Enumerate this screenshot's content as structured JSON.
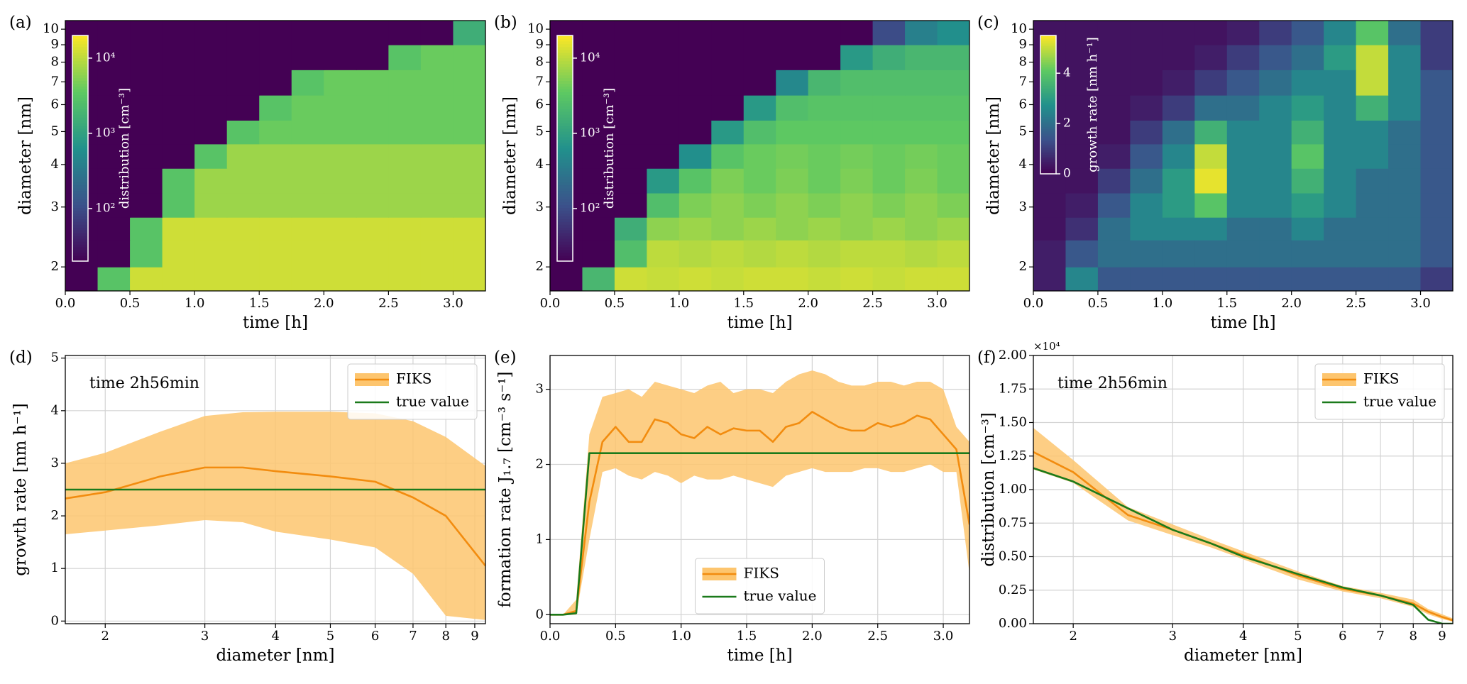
{
  "chart_data": [
    {
      "type": "heatmap",
      "panel_label": "(a)",
      "xlabel": "time [h]",
      "ylabel": "diameter [nm]",
      "x": [
        0,
        0.25,
        0.5,
        0.75,
        1,
        1.25,
        1.5,
        1.75,
        2,
        2.25,
        2.5,
        2.75,
        3,
        3.25
      ],
      "y": [
        1.7,
        2,
        2.4,
        2.8,
        3.3,
        3.9,
        4.6,
        5.4,
        6.4,
        7.6,
        9,
        10.6
      ],
      "z": [
        [
          20,
          3000,
          12000,
          12000,
          12000,
          12000,
          12000,
          12000,
          12000,
          12000,
          12000,
          12000,
          12000
        ],
        [
          20,
          20,
          3000,
          12000,
          12000,
          12000,
          12000,
          12000,
          12000,
          12000,
          12000,
          12000,
          12000
        ],
        [
          20,
          20,
          3000,
          12000,
          12000,
          12000,
          12000,
          12000,
          12000,
          12000,
          12000,
          12000,
          12000
        ],
        [
          20,
          20,
          20,
          3000,
          7000,
          7000,
          7000,
          7000,
          7000,
          7000,
          7000,
          7000,
          7000
        ],
        [
          20,
          20,
          20,
          3000,
          7000,
          7000,
          7000,
          7000,
          7000,
          7000,
          7000,
          7000,
          7000
        ],
        [
          20,
          20,
          20,
          20,
          3000,
          7000,
          7000,
          7000,
          7000,
          7000,
          7000,
          7000,
          7000
        ],
        [
          20,
          20,
          20,
          20,
          20,
          3000,
          4000,
          4000,
          4000,
          4000,
          4000,
          4000,
          4000
        ],
        [
          20,
          20,
          20,
          20,
          20,
          20,
          3000,
          4000,
          4000,
          4000,
          4000,
          4000,
          4000
        ],
        [
          20,
          20,
          20,
          20,
          20,
          20,
          20,
          3000,
          4000,
          4000,
          4000,
          4000,
          4000
        ],
        [
          20,
          20,
          20,
          20,
          20,
          20,
          20,
          20,
          20,
          20,
          3000,
          4000,
          4000
        ],
        [
          20,
          20,
          20,
          20,
          20,
          20,
          20,
          20,
          20,
          20,
          20,
          20,
          1500
        ]
      ],
      "xlim": [
        0,
        3.25
      ],
      "xticks": [
        {
          "value": 0,
          "label": "0.0"
        },
        0.5,
        {
          "value": 1,
          "label": "1.0"
        },
        1.5,
        {
          "value": 2,
          "label": "2.0"
        },
        2.5,
        {
          "value": 3,
          "label": "3.0"
        }
      ],
      "ylim": [
        1.7,
        10.6
      ],
      "yscale": "log",
      "yticks": [
        2,
        3,
        4,
        5,
        6,
        7,
        8,
        9,
        10
      ],
      "colorbar": {
        "label": "distribution [cm⁻³]",
        "scale": "log",
        "lim": [
          20,
          20000
        ],
        "colormap": "viridis",
        "ticks": [
          {
            "value": 100,
            "label": "10²"
          },
          {
            "value": 1000,
            "label": "10³"
          },
          {
            "value": 10000,
            "label": "10⁴"
          }
        ]
      }
    },
    {
      "type": "heatmap",
      "panel_label": "(b)",
      "xlabel": "time [h]",
      "ylabel": "diameter [nm]",
      "x": [
        0,
        0.25,
        0.5,
        0.75,
        1,
        1.25,
        1.5,
        1.75,
        2,
        2.25,
        2.5,
        2.75,
        3,
        3.25
      ],
      "y": [
        1.7,
        2,
        2.4,
        2.8,
        3.3,
        3.9,
        4.6,
        5.4,
        6.4,
        7.6,
        9,
        10.6
      ],
      "z": [
        [
          20,
          2000,
          12000,
          11000,
          12000,
          11000,
          12000,
          12000,
          11000,
          12000,
          11000,
          12000,
          12000
        ],
        [
          20,
          20,
          2500,
          10000,
          9000,
          10000,
          9000,
          10000,
          9000,
          10000,
          10000,
          9000,
          10000
        ],
        [
          20,
          20,
          1500,
          6000,
          7000,
          6000,
          7000,
          6000,
          7000,
          6000,
          7000,
          6000,
          7000
        ],
        [
          20,
          20,
          20,
          2500,
          5000,
          6000,
          5000,
          6000,
          5000,
          6000,
          5000,
          6000,
          5000
        ],
        [
          20,
          20,
          20,
          800,
          3000,
          5000,
          4000,
          5000,
          4000,
          5000,
          4000,
          5000,
          4000
        ],
        [
          20,
          20,
          20,
          20,
          600,
          3000,
          4000,
          4500,
          4000,
          4500,
          4000,
          4500,
          4000
        ],
        [
          20,
          20,
          20,
          20,
          20,
          800,
          2500,
          3500,
          3500,
          3500,
          3500,
          3500,
          3500
        ],
        [
          20,
          20,
          20,
          20,
          20,
          20,
          800,
          2500,
          3000,
          3000,
          3000,
          3000,
          3000
        ],
        [
          20,
          20,
          20,
          20,
          20,
          20,
          20,
          500,
          2000,
          2500,
          2500,
          2500,
          2500
        ],
        [
          20,
          20,
          20,
          20,
          20,
          20,
          20,
          20,
          20,
          800,
          1500,
          2000,
          2000
        ],
        [
          20,
          20,
          20,
          20,
          20,
          20,
          20,
          20,
          20,
          20,
          100,
          400,
          600
        ]
      ],
      "xlim": [
        0,
        3.25
      ],
      "xticks": [
        {
          "value": 0,
          "label": "0.0"
        },
        0.5,
        {
          "value": 1,
          "label": "1.0"
        },
        1.5,
        {
          "value": 2,
          "label": "2.0"
        },
        2.5,
        {
          "value": 3,
          "label": "3.0"
        }
      ],
      "ylim": [
        1.7,
        10.6
      ],
      "yscale": "log",
      "yticks": [
        2,
        3,
        4,
        5,
        6,
        7,
        8,
        9,
        10
      ],
      "colorbar": {
        "label": "distribution [cm⁻³]",
        "scale": "log",
        "lim": [
          20,
          20000
        ],
        "colormap": "viridis",
        "ticks": [
          {
            "value": 100,
            "label": "10²"
          },
          {
            "value": 1000,
            "label": "10³"
          },
          {
            "value": 10000,
            "label": "10⁴"
          }
        ]
      }
    },
    {
      "type": "heatmap",
      "panel_label": "(c)",
      "xlabel": "time [h]",
      "ylabel": "diameter [nm]",
      "x": [
        0,
        0.25,
        0.5,
        0.75,
        1,
        1.25,
        1.5,
        1.75,
        2,
        2.25,
        2.5,
        2.75,
        3,
        3.25
      ],
      "y": [
        1.7,
        2,
        2.4,
        2.8,
        3.3,
        3.9,
        4.6,
        5.4,
        6.4,
        7.6,
        9,
        10.6
      ],
      "z": [
        [
          0.5,
          2.5,
          1.5,
          1.5,
          1.5,
          1.5,
          1.5,
          1.5,
          1.5,
          1.5,
          1.5,
          1.5,
          1
        ],
        [
          0.5,
          1.5,
          2,
          2,
          2,
          2,
          2,
          2,
          2,
          2,
          2,
          2,
          1.5
        ],
        [
          0.3,
          0.8,
          2,
          2.5,
          2.5,
          2.5,
          2,
          2,
          2.5,
          2,
          2,
          2,
          1.5
        ],
        [
          0.3,
          0.5,
          1.5,
          2.5,
          3,
          4,
          2.5,
          2.5,
          3,
          2.5,
          2,
          2,
          1.5
        ],
        [
          0.3,
          0.3,
          1,
          2,
          3,
          5.3,
          2.5,
          2.5,
          3.5,
          2.5,
          2,
          2,
          1.5
        ],
        [
          0.3,
          0.3,
          0.5,
          1.5,
          2.5,
          5,
          2.5,
          2.5,
          4,
          2.5,
          2.5,
          2,
          1.5
        ],
        [
          0.3,
          0.3,
          0.3,
          1,
          2,
          3.5,
          2.5,
          2.5,
          3.5,
          2.5,
          2.5,
          2,
          1.5
        ],
        [
          0.3,
          0.3,
          0.3,
          0.5,
          1,
          2,
          2,
          2.5,
          3,
          2.5,
          3.5,
          2.5,
          1.5
        ],
        [
          0.3,
          0.3,
          0.3,
          0.3,
          0.5,
          1,
          1.5,
          2,
          2.5,
          2.5,
          5,
          2.5,
          1.5
        ],
        [
          0.3,
          0.3,
          0.3,
          0.3,
          0.3,
          0.5,
          1,
          1.5,
          2,
          3,
          5,
          2.5,
          1
        ],
        [
          0.3,
          0.3,
          0.3,
          0.3,
          0.3,
          0.3,
          0.5,
          1,
          1.5,
          2.5,
          4,
          2,
          1
        ]
      ],
      "xlim": [
        0,
        3.25
      ],
      "xticks": [
        {
          "value": 0,
          "label": "0.0"
        },
        0.5,
        {
          "value": 1,
          "label": "1.0"
        },
        1.5,
        {
          "value": 2,
          "label": "2.0"
        },
        2.5,
        {
          "value": 3,
          "label": "3.0"
        }
      ],
      "ylim": [
        1.7,
        10.6
      ],
      "yscale": "log",
      "yticks": [
        2,
        3,
        4,
        5,
        6,
        7,
        8,
        9,
        10
      ],
      "colorbar": {
        "label": "growth rate [nm h⁻¹]",
        "scale": "linear",
        "lim": [
          0,
          5.5
        ],
        "colormap": "viridis",
        "ticks": [
          0,
          2,
          4
        ]
      }
    },
    {
      "type": "line",
      "panel_label": "(d)",
      "xlabel": "diameter [nm]",
      "ylabel": "growth rate [nm h⁻¹]",
      "annotation": "time 2h56min",
      "x": [
        1.7,
        2,
        2.5,
        3,
        3.5,
        4,
        5,
        6,
        7,
        8,
        9.4
      ],
      "series": [
        {
          "name": "FIKS",
          "color": "#f28c0f",
          "band_color": "#fdc56e",
          "values": [
            2.33,
            2.45,
            2.75,
            2.92,
            2.92,
            2.85,
            2.75,
            2.65,
            2.35,
            2.0,
            1.05
          ],
          "band_lower": [
            1.65,
            1.72,
            1.82,
            1.92,
            1.88,
            1.7,
            1.55,
            1.4,
            0.9,
            0.1,
            0.02
          ],
          "band_upper": [
            3.0,
            3.2,
            3.6,
            3.9,
            3.97,
            3.98,
            3.98,
            3.95,
            3.8,
            3.5,
            2.95
          ]
        },
        {
          "name": "true value",
          "color": "#1b7a1b",
          "values": [
            2.5,
            2.5,
            2.5,
            2.5,
            2.5,
            2.5,
            2.5,
            2.5,
            2.5,
            2.5,
            2.5
          ]
        }
      ],
      "xscale": "log",
      "xlim": [
        1.7,
        9.4
      ],
      "xticks": [
        2,
        3,
        4,
        5,
        6,
        7,
        8,
        9
      ],
      "ylim": [
        -0.05,
        5.05
      ],
      "yticks": [
        0,
        1,
        2,
        3,
        4,
        5
      ],
      "grid": true,
      "legend": "upper right"
    },
    {
      "type": "line",
      "panel_label": "(e)",
      "xlabel": "time [h]",
      "ylabel": "formation rate J₁.₇ [cm⁻³ s⁻¹]",
      "x": [
        0,
        0.1,
        0.2,
        0.3,
        0.4,
        0.5,
        0.6,
        0.7,
        0.8,
        0.9,
        1.0,
        1.1,
        1.2,
        1.3,
        1.4,
        1.5,
        1.6,
        1.7,
        1.8,
        1.9,
        2.0,
        2.1,
        2.2,
        2.3,
        2.4,
        2.5,
        2.6,
        2.7,
        2.8,
        2.9,
        3.0,
        3.1,
        3.2
      ],
      "series": [
        {
          "name": "FIKS",
          "color": "#f28c0f",
          "band_color": "#fdc56e",
          "values": [
            0,
            0,
            0.05,
            1.5,
            2.3,
            2.5,
            2.3,
            2.3,
            2.6,
            2.55,
            2.4,
            2.35,
            2.5,
            2.4,
            2.48,
            2.45,
            2.45,
            2.3,
            2.5,
            2.55,
            2.7,
            2.6,
            2.5,
            2.45,
            2.45,
            2.55,
            2.5,
            2.55,
            2.65,
            2.6,
            2.4,
            2.2,
            1.2
          ],
          "band_lower": [
            0,
            0,
            0,
            1.0,
            1.9,
            1.95,
            1.85,
            1.8,
            1.9,
            1.85,
            1.75,
            1.85,
            1.8,
            1.8,
            1.85,
            1.8,
            1.75,
            1.7,
            1.85,
            1.9,
            1.95,
            1.9,
            1.9,
            1.9,
            1.95,
            1.95,
            1.9,
            1.9,
            1.95,
            2.0,
            1.9,
            1.9,
            0.55
          ],
          "band_upper": [
            0,
            0,
            0.2,
            2.4,
            2.9,
            2.95,
            3.0,
            2.9,
            3.1,
            3.05,
            3.0,
            2.95,
            3.05,
            3.1,
            2.95,
            3.0,
            3.0,
            2.95,
            3.1,
            3.2,
            3.25,
            3.2,
            3.1,
            3.05,
            3.05,
            3.1,
            3.1,
            3.05,
            3.1,
            3.1,
            3.0,
            2.5,
            2.3
          ]
        },
        {
          "name": "true value",
          "color": "#1b7a1b",
          "values": [
            0,
            0,
            0.02,
            2.15,
            2.15,
            2.15,
            2.15,
            2.15,
            2.15,
            2.15,
            2.15,
            2.15,
            2.15,
            2.15,
            2.15,
            2.15,
            2.15,
            2.15,
            2.15,
            2.15,
            2.15,
            2.15,
            2.15,
            2.15,
            2.15,
            2.15,
            2.15,
            2.15,
            2.15,
            2.15,
            2.15,
            2.15,
            2.15
          ]
        }
      ],
      "xlim": [
        0,
        3.2
      ],
      "xticks": [
        {
          "value": 0,
          "label": "0.0"
        },
        0.5,
        {
          "value": 1,
          "label": "1.0"
        },
        1.5,
        {
          "value": 2,
          "label": "2.0"
        },
        2.5,
        {
          "value": 3,
          "label": "3.0"
        }
      ],
      "ylim": [
        -0.12,
        3.45
      ],
      "yticks": [
        0,
        1,
        2,
        3
      ],
      "grid": true,
      "legend": "lower center"
    },
    {
      "type": "line",
      "panel_label": "(f)",
      "xlabel": "diameter [nm]",
      "ylabel": "distribution [cm⁻³]",
      "annotation": "time 2h56min",
      "y_offset_label": "×10⁴",
      "x": [
        1.7,
        2,
        2.5,
        3,
        3.5,
        4,
        5,
        6,
        7,
        8,
        8.5,
        9,
        9.4
      ],
      "series": [
        {
          "name": "FIKS",
          "color": "#f28c0f",
          "band_color": "#fdc56e",
          "values": [
            12800,
            11300,
            8100,
            7000,
            6000,
            5100,
            3600,
            2600,
            2100,
            1500,
            900,
            500,
            250
          ],
          "band_lower": [
            11500,
            10500,
            7700,
            6600,
            5700,
            4800,
            3300,
            2400,
            1900,
            1250,
            700,
            350,
            150
          ],
          "band_upper": [
            14600,
            12200,
            8700,
            7400,
            6300,
            5400,
            3900,
            2800,
            2300,
            1800,
            1100,
            700,
            400
          ]
        },
        {
          "name": "true value",
          "color": "#1b7a1b",
          "values": [
            11600,
            10600,
            8600,
            7000,
            6000,
            5000,
            3700,
            2700,
            2100,
            1400,
            300,
            0,
            0
          ]
        }
      ],
      "xscale": "log",
      "xlim": [
        1.7,
        9.4
      ],
      "xticks": [
        2,
        3,
        4,
        5,
        6,
        7,
        8,
        9
      ],
      "ylim": [
        0,
        20000
      ],
      "yticks": [
        {
          "value": 0,
          "label": "0.00"
        },
        {
          "value": 2500,
          "label": "0.25"
        },
        {
          "value": 5000,
          "label": "0.50"
        },
        {
          "value": 7500,
          "label": "0.75"
        },
        {
          "value": 10000,
          "label": "1.00"
        },
        {
          "value": 12500,
          "label": "1.25"
        },
        {
          "value": 15000,
          "label": "1.50"
        },
        {
          "value": 17500,
          "label": "1.75"
        },
        {
          "value": 20000,
          "label": "2.00"
        }
      ],
      "grid": true,
      "legend": "upper right"
    }
  ]
}
